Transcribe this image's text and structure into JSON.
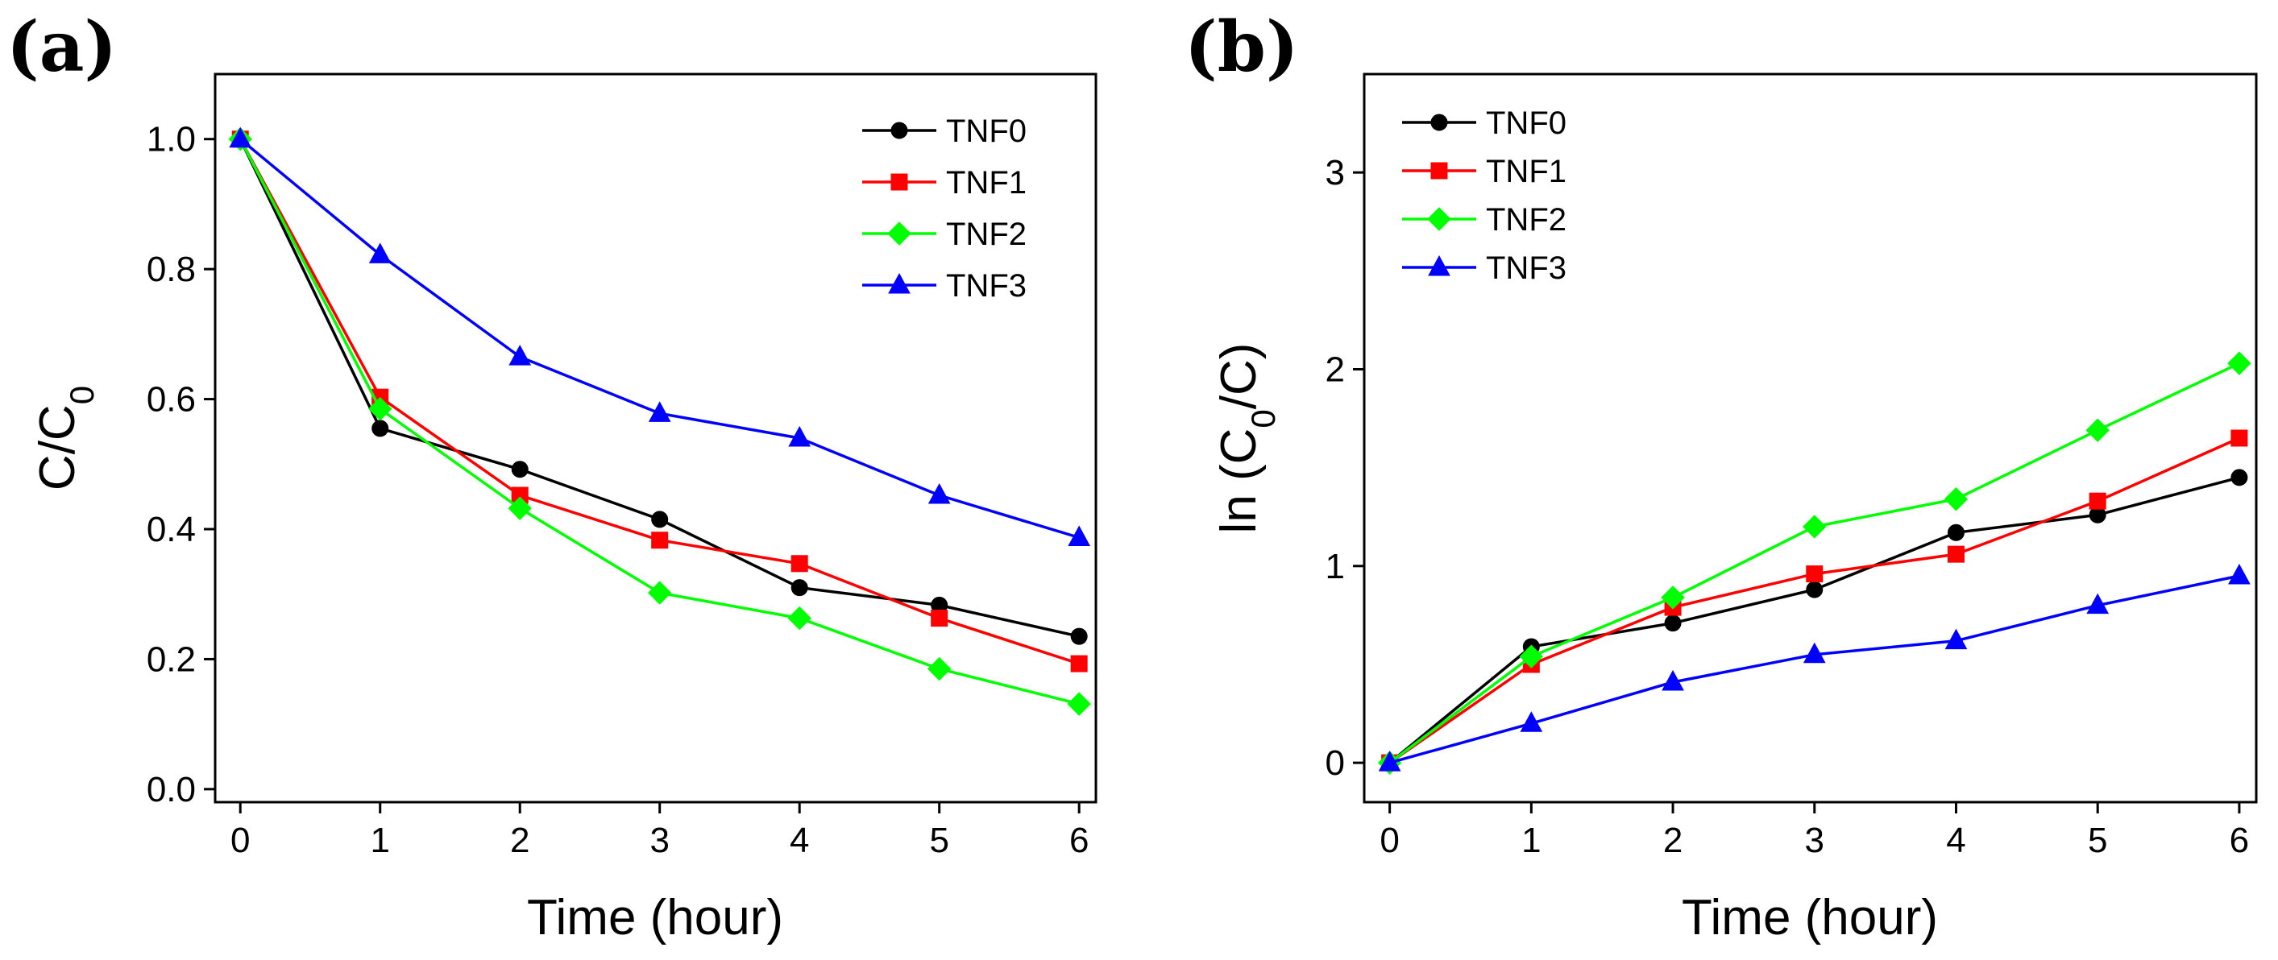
{
  "chart_data": [
    {
      "panel": "(a)",
      "type": "line",
      "xlabel": "Time (hour)",
      "ylabel": {
        "base": "C/C",
        "sub": "0",
        "tail": ""
      },
      "x": [
        0,
        1,
        2,
        3,
        4,
        5,
        6
      ],
      "xticks": [
        "0",
        "1",
        "2",
        "3",
        "4",
        "5",
        "6"
      ],
      "yticks": [
        "0.0",
        "0.2",
        "0.4",
        "0.6",
        "0.8",
        "1.0"
      ],
      "xlim": [
        -0.18,
        6.12
      ],
      "ylim": [
        -0.02,
        1.1
      ],
      "legend_position": "top-right",
      "series": [
        {
          "name": "TNF0",
          "color": "#000000",
          "marker": "circle",
          "values": [
            1.0,
            0.555,
            0.492,
            0.415,
            0.31,
            0.283,
            0.235
          ]
        },
        {
          "name": "TNF1",
          "color": "#ff0000",
          "marker": "square",
          "values": [
            1.0,
            0.603,
            0.452,
            0.383,
            0.347,
            0.263,
            0.193
          ]
        },
        {
          "name": "TNF2",
          "color": "#00ff00",
          "marker": "diamond",
          "values": [
            1.0,
            0.585,
            0.432,
            0.302,
            0.263,
            0.185,
            0.131
          ]
        },
        {
          "name": "TNF3",
          "color": "#0000ff",
          "marker": "triangle",
          "values": [
            1.0,
            0.822,
            0.665,
            0.578,
            0.54,
            0.452,
            0.387
          ]
        }
      ]
    },
    {
      "panel": "(b)",
      "type": "line",
      "xlabel": "Time (hour)",
      "ylabel": {
        "base": "ln (C",
        "sub": "0",
        "tail": "/C)"
      },
      "x": [
        0,
        1,
        2,
        3,
        4,
        5,
        6
      ],
      "xticks": [
        "0",
        "1",
        "2",
        "3",
        "4",
        "5",
        "6"
      ],
      "yticks": [
        "0",
        "1",
        "2",
        "3"
      ],
      "xlim": [
        -0.18,
        6.12
      ],
      "ylim": [
        -0.2,
        3.5
      ],
      "legend_position": "top-left",
      "series": [
        {
          "name": "TNF0",
          "color": "#000000",
          "marker": "circle",
          "values": [
            0.0,
            0.59,
            0.71,
            0.88,
            1.17,
            1.26,
            1.45
          ]
        },
        {
          "name": "TNF1",
          "color": "#ff0000",
          "marker": "square",
          "values": [
            0.0,
            0.5,
            0.79,
            0.96,
            1.06,
            1.33,
            1.65
          ]
        },
        {
          "name": "TNF2",
          "color": "#00ff00",
          "marker": "diamond",
          "values": [
            0.0,
            0.54,
            0.84,
            1.2,
            1.34,
            1.69,
            2.03
          ]
        },
        {
          "name": "TNF3",
          "color": "#0000ff",
          "marker": "triangle",
          "values": [
            0.0,
            0.2,
            0.41,
            0.55,
            0.62,
            0.8,
            0.95
          ]
        }
      ]
    }
  ]
}
